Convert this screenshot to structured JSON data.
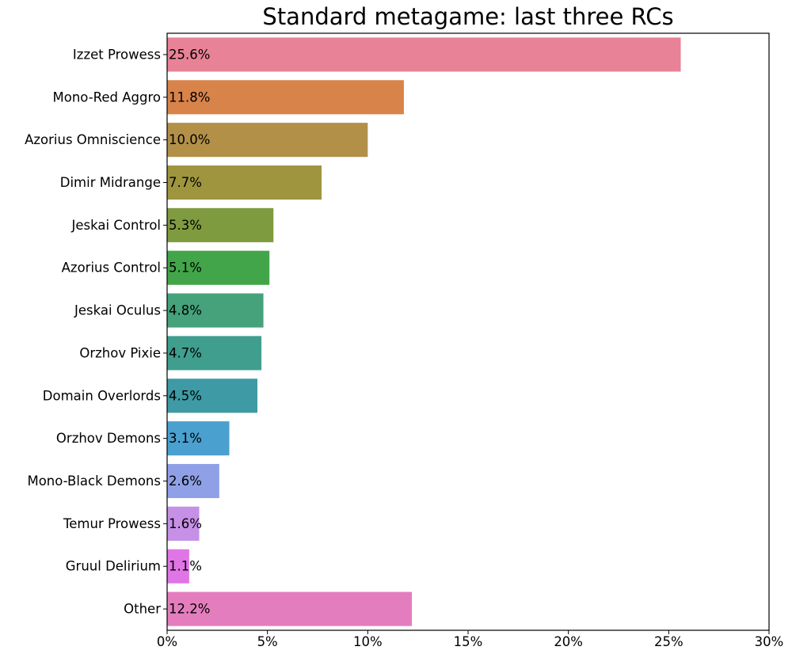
{
  "chart_data": {
    "type": "bar",
    "orientation": "horizontal",
    "title": "Standard metagame: last three RCs",
    "xlabel": "",
    "ylabel": "",
    "xlim": [
      0,
      30
    ],
    "x_ticks": [
      0,
      5,
      10,
      15,
      20,
      25,
      30
    ],
    "x_tick_labels": [
      "0%",
      "5%",
      "10%",
      "15%",
      "20%",
      "25%",
      "30%"
    ],
    "grid": false,
    "categories": [
      "Izzet Prowess",
      "Mono-Red Aggro",
      "Azorius Omniscience",
      "Dimir Midrange",
      "Jeskai Control",
      "Azorius Control",
      "Jeskai Oculus",
      "Orzhov Pixie",
      "Domain Overlords",
      "Orzhov Demons",
      "Mono-Black Demons",
      "Temur Prowess",
      "Gruul Delirium",
      "Other"
    ],
    "values": [
      25.6,
      11.8,
      10.0,
      7.7,
      5.3,
      5.1,
      4.8,
      4.7,
      4.5,
      3.1,
      2.6,
      1.6,
      1.1,
      12.2
    ],
    "value_labels": [
      "25.6%",
      "11.8%",
      "10.0%",
      "7.7%",
      "5.3%",
      "5.1%",
      "4.8%",
      "4.7%",
      "4.5%",
      "3.1%",
      "2.6%",
      "1.6%",
      "1.1%",
      "12.2%"
    ],
    "colors": [
      "#e88296",
      "#d8834a",
      "#b39048",
      "#9f953f",
      "#7f9b3f",
      "#42a54a",
      "#45a27a",
      "#3f9e8e",
      "#3e9aa4",
      "#4aa0cf",
      "#8fa0e6",
      "#c590e6",
      "#e075e6",
      "#e47dbd"
    ]
  }
}
